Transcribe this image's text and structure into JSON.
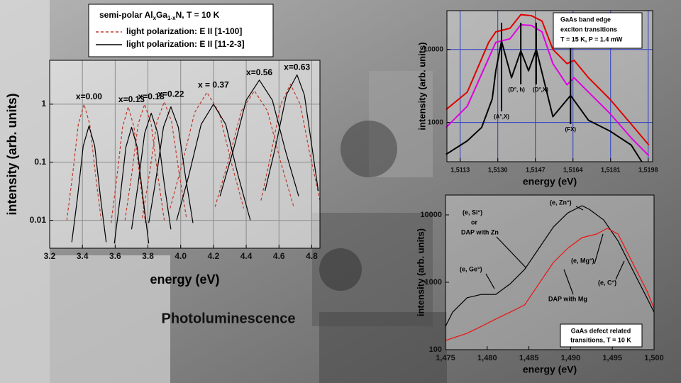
{
  "slide_title": "Photoluminescence",
  "chart_data": [
    {
      "type": "line",
      "log_y": true,
      "legend_title": [
        "semi-polar Al",
        "x",
        "Ga",
        "1-x",
        "N, T = 10 K"
      ],
      "xlabel": "energy (eV)",
      "ylabel": "intensity (arb. units)",
      "xlim": [
        3.2,
        4.85
      ],
      "ylim": [
        0.0033,
        5.7
      ],
      "xticks": [
        3.2,
        3.4,
        3.6,
        3.8,
        {
          "value": 4,
          "label": "4.0"
        },
        4.2,
        4.4,
        4.6,
        4.8
      ],
      "yticks": [
        0.01,
        0.1,
        1
      ],
      "grid": true,
      "grid_color": "#8c8c8c",
      "annotations": [
        "x=0.00",
        "x=0.13",
        "x=0.18",
        "x=0.22",
        "x = 0.37",
        "x=0.56",
        "x=0.63"
      ],
      "series": [
        {
          "name": "light polarization: E II [1-100]",
          "color": "#c0392b",
          "dash": true,
          "curves": [
            {
              "x": [
                3.305,
                3.34,
                3.375,
                3.41,
                3.445,
                3.48,
                3.515
              ],
              "values": [
                0.01,
                0.06,
                0.45,
                1,
                0.45,
                0.06,
                0.01
              ]
            },
            {
              "x": [
                3.575,
                3.61,
                3.645,
                3.68,
                3.715,
                3.75,
                3.785
              ],
              "values": [
                0.009,
                0.054,
                0.405,
                0.9,
                0.405,
                0.054,
                0.009
              ]
            },
            {
              "x": [
                3.66,
                3.7,
                3.74,
                3.78,
                3.82,
                3.86,
                3.9
              ],
              "values": [
                0.01,
                0.06,
                0.45,
                1,
                0.45,
                0.06,
                0.01
              ]
            },
            {
              "x": [
                3.765,
                3.81,
                3.855,
                3.9,
                3.945,
                3.99,
                4.035
              ],
              "values": [
                0.011,
                0.066,
                0.495,
                1.1,
                0.495,
                0.066,
                0.011
              ]
            },
            {
              "x": [
                3.935,
                4.01,
                4.085,
                4.16,
                4.235,
                4.31,
                4.385
              ],
              "values": [
                0.016,
                0.096,
                0.72,
                1.6,
                0.72,
                0.096,
                0.016
              ]
            },
            {
              "x": [
                4.21,
                4.29,
                4.37,
                4.45,
                4.53,
                4.61,
                4.69
              ],
              "values": [
                0.017,
                0.102,
                0.765,
                1.7,
                0.765,
                0.102,
                0.017
              ]
            },
            {
              "x": [
                4.49,
                4.55,
                4.61,
                4.67,
                4.73,
                4.79,
                4.85
              ],
              "values": [
                0.022,
                0.132,
                0.99,
                2.2,
                0.99,
                0.132,
                0.022
              ]
            }
          ]
        },
        {
          "name": "light polarization: E II [11-2-3]",
          "color": "#000000",
          "dash": false,
          "curves": [
            {
              "x": [
                3.335,
                3.37,
                3.405,
                3.44,
                3.475,
                3.51,
                3.545
              ],
              "values": [
                0.0042,
                0.025,
                0.19,
                0.42,
                0.19,
                0.025,
                0.0042
              ]
            },
            {
              "x": [
                3.595,
                3.63,
                3.665,
                3.7,
                3.735,
                3.77,
                3.805
              ],
              "values": [
                0.004,
                0.024,
                0.18,
                0.4,
                0.18,
                0.024,
                0.004
              ]
            },
            {
              "x": [
                3.7,
                3.74,
                3.78,
                3.82,
                3.86,
                3.9,
                3.94
              ],
              "values": [
                0.007,
                0.042,
                0.315,
                0.7,
                0.315,
                0.042,
                0.007
              ]
            },
            {
              "x": [
                3.805,
                3.85,
                3.895,
                3.94,
                3.985,
                4.03,
                4.075
              ],
              "values": [
                0.009,
                0.054,
                0.405,
                0.9,
                0.405,
                0.054,
                0.009
              ]
            },
            {
              "x": [
                3.975,
                4.05,
                4.125,
                4.2,
                4.275,
                4.35,
                4.425
              ],
              "values": [
                0.01,
                0.06,
                0.45,
                1,
                0.45,
                0.06,
                0.01
              ]
            },
            {
              "x": [
                4.24,
                4.32,
                4.4,
                4.48,
                4.56,
                4.64,
                4.72
              ],
              "values": [
                0.026,
                0.156,
                1.17,
                2.6,
                1.17,
                0.156,
                0.026
              ]
            },
            {
              "x": [
                4.515,
                4.58,
                4.645,
                4.71,
                4.755,
                4.8,
                4.84
              ],
              "values": [
                0.032,
                0.192,
                1.44,
                3.2,
                1.44,
                0.192,
                0.032
              ]
            }
          ]
        }
      ]
    },
    {
      "type": "line",
      "log_y": true,
      "note": [
        "GaAs band edge",
        "exciton transitions",
        "T = 15 K, P = 1.4 mW"
      ],
      "xlabel": "energy (eV)",
      "ylabel": "intensity (arb. units)",
      "xlim": [
        1.5107,
        1.52
      ],
      "ylim": [
        290,
        34000
      ],
      "xticks": [
        {
          "value": 1.5113,
          "label": "1,5113"
        },
        {
          "value": 1.513,
          "label": "1,5130"
        },
        {
          "value": 1.5147,
          "label": "1,5147"
        },
        {
          "value": 1.5164,
          "label": "1,5164"
        },
        {
          "value": 1.5181,
          "label": "1,5181"
        },
        {
          "value": 1.5198,
          "label": "1,5198"
        }
      ],
      "yticks": [
        1000,
        10000
      ],
      "grid": true,
      "grid_color": "#2a3cc8",
      "series": [
        {
          "color": "#e00000",
          "x": [
            1.51066,
            1.51162,
            1.51259,
            1.51291,
            1.51355,
            1.51404,
            1.51452,
            1.515,
            1.51549,
            1.51613,
            1.51645,
            1.5171,
            1.51806,
            1.51903,
            1.51983
          ],
          "values": [
            1500,
            2600,
            12500,
            17400,
            19500,
            30000,
            29000,
            24500,
            10000,
            6400,
            7100,
            4100,
            2100,
            950,
            490
          ]
        },
        {
          "color": "#e000e0",
          "x": [
            1.51066,
            1.51162,
            1.51291,
            1.51355,
            1.51404,
            1.51452,
            1.515,
            1.51549,
            1.51613,
            1.51645,
            1.5171,
            1.51806,
            1.51903,
            1.51983
          ],
          "values": [
            855,
            1670,
            12500,
            14000,
            21800,
            21300,
            17400,
            6400,
            3280,
            4100,
            2600,
            1340,
            615,
            350
          ]
        },
        {
          "color": "#000000",
          "x": [
            1.51066,
            1.51162,
            1.51227,
            1.51275,
            1.51291,
            1.51317,
            1.51362,
            1.51404,
            1.51439,
            1.51474,
            1.51549,
            1.51629,
            1.5171,
            1.51806,
            1.51903,
            1.51951
          ],
          "values": [
            366,
            560,
            855,
            2100,
            5100,
            13000,
            4100,
            9560,
            5100,
            10000,
            1200,
            2340,
            1070,
            765,
            490,
            290
          ]
        }
      ],
      "annotations": [
        {
          "text": "(A°,X)",
          "x": 1.51317
        },
        {
          "text": "(D°, h)",
          "x": 1.51404
        },
        {
          "text": "(D°,X)",
          "x": 1.51474
        },
        {
          "text": "(FX)",
          "x": 1.51629
        }
      ]
    },
    {
      "type": "line",
      "log_y": true,
      "note": [
        "GaAs defect related",
        "transitions, T = 10 K"
      ],
      "xlabel": "energy (eV)",
      "ylabel": "intensity (arb. units)",
      "xlim": [
        1.475,
        1.5
      ],
      "ylim": [
        100,
        19700
      ],
      "xticks": [
        {
          "value": 1.475,
          "label": "1,475"
        },
        {
          "value": 1.48,
          "label": "1,480"
        },
        {
          "value": 1.485,
          "label": "1,485"
        },
        {
          "value": 1.49,
          "label": "1,490"
        },
        {
          "value": 1.495,
          "label": "1,495"
        },
        {
          "value": 1.5,
          "label": "1,500"
        }
      ],
      "yticks": [
        100,
        1000,
        10000
      ],
      "grid": false,
      "series": [
        {
          "color": "#000000",
          "x": [
            1.475,
            1.47586,
            1.47759,
            1.47931,
            1.48103,
            1.48276,
            1.48448,
            1.48621,
            1.48793,
            1.48966,
            1.49138,
            1.49224,
            1.49397,
            1.49569,
            1.49741,
            1.49914,
            1.5
          ],
          "values": [
            222,
            360,
            590,
            660,
            660,
            950,
            1550,
            3200,
            6600,
            10700,
            13700,
            12100,
            8400,
            4100,
            1550,
            590,
            360
          ]
        },
        {
          "color": "#ee1111",
          "x": [
            1.475,
            1.47759,
            1.47931,
            1.48103,
            1.48276,
            1.48448,
            1.48621,
            1.48793,
            1.48966,
            1.49138,
            1.4931,
            1.4944,
            1.49569,
            1.49741,
            1.49914,
            1.5
          ],
          "values": [
            137,
            175,
            222,
            285,
            360,
            460,
            950,
            1970,
            3200,
            4600,
            5200,
            6300,
            5200,
            1970,
            750,
            410
          ]
        }
      ],
      "annotations": [
        "(e, Si°)",
        "or",
        "DAP with Zn",
        "(e, Zn°)",
        "(e, Ge°)",
        "(e, Mg°)",
        "(e, C°)",
        "DAP with Mg"
      ]
    }
  ]
}
